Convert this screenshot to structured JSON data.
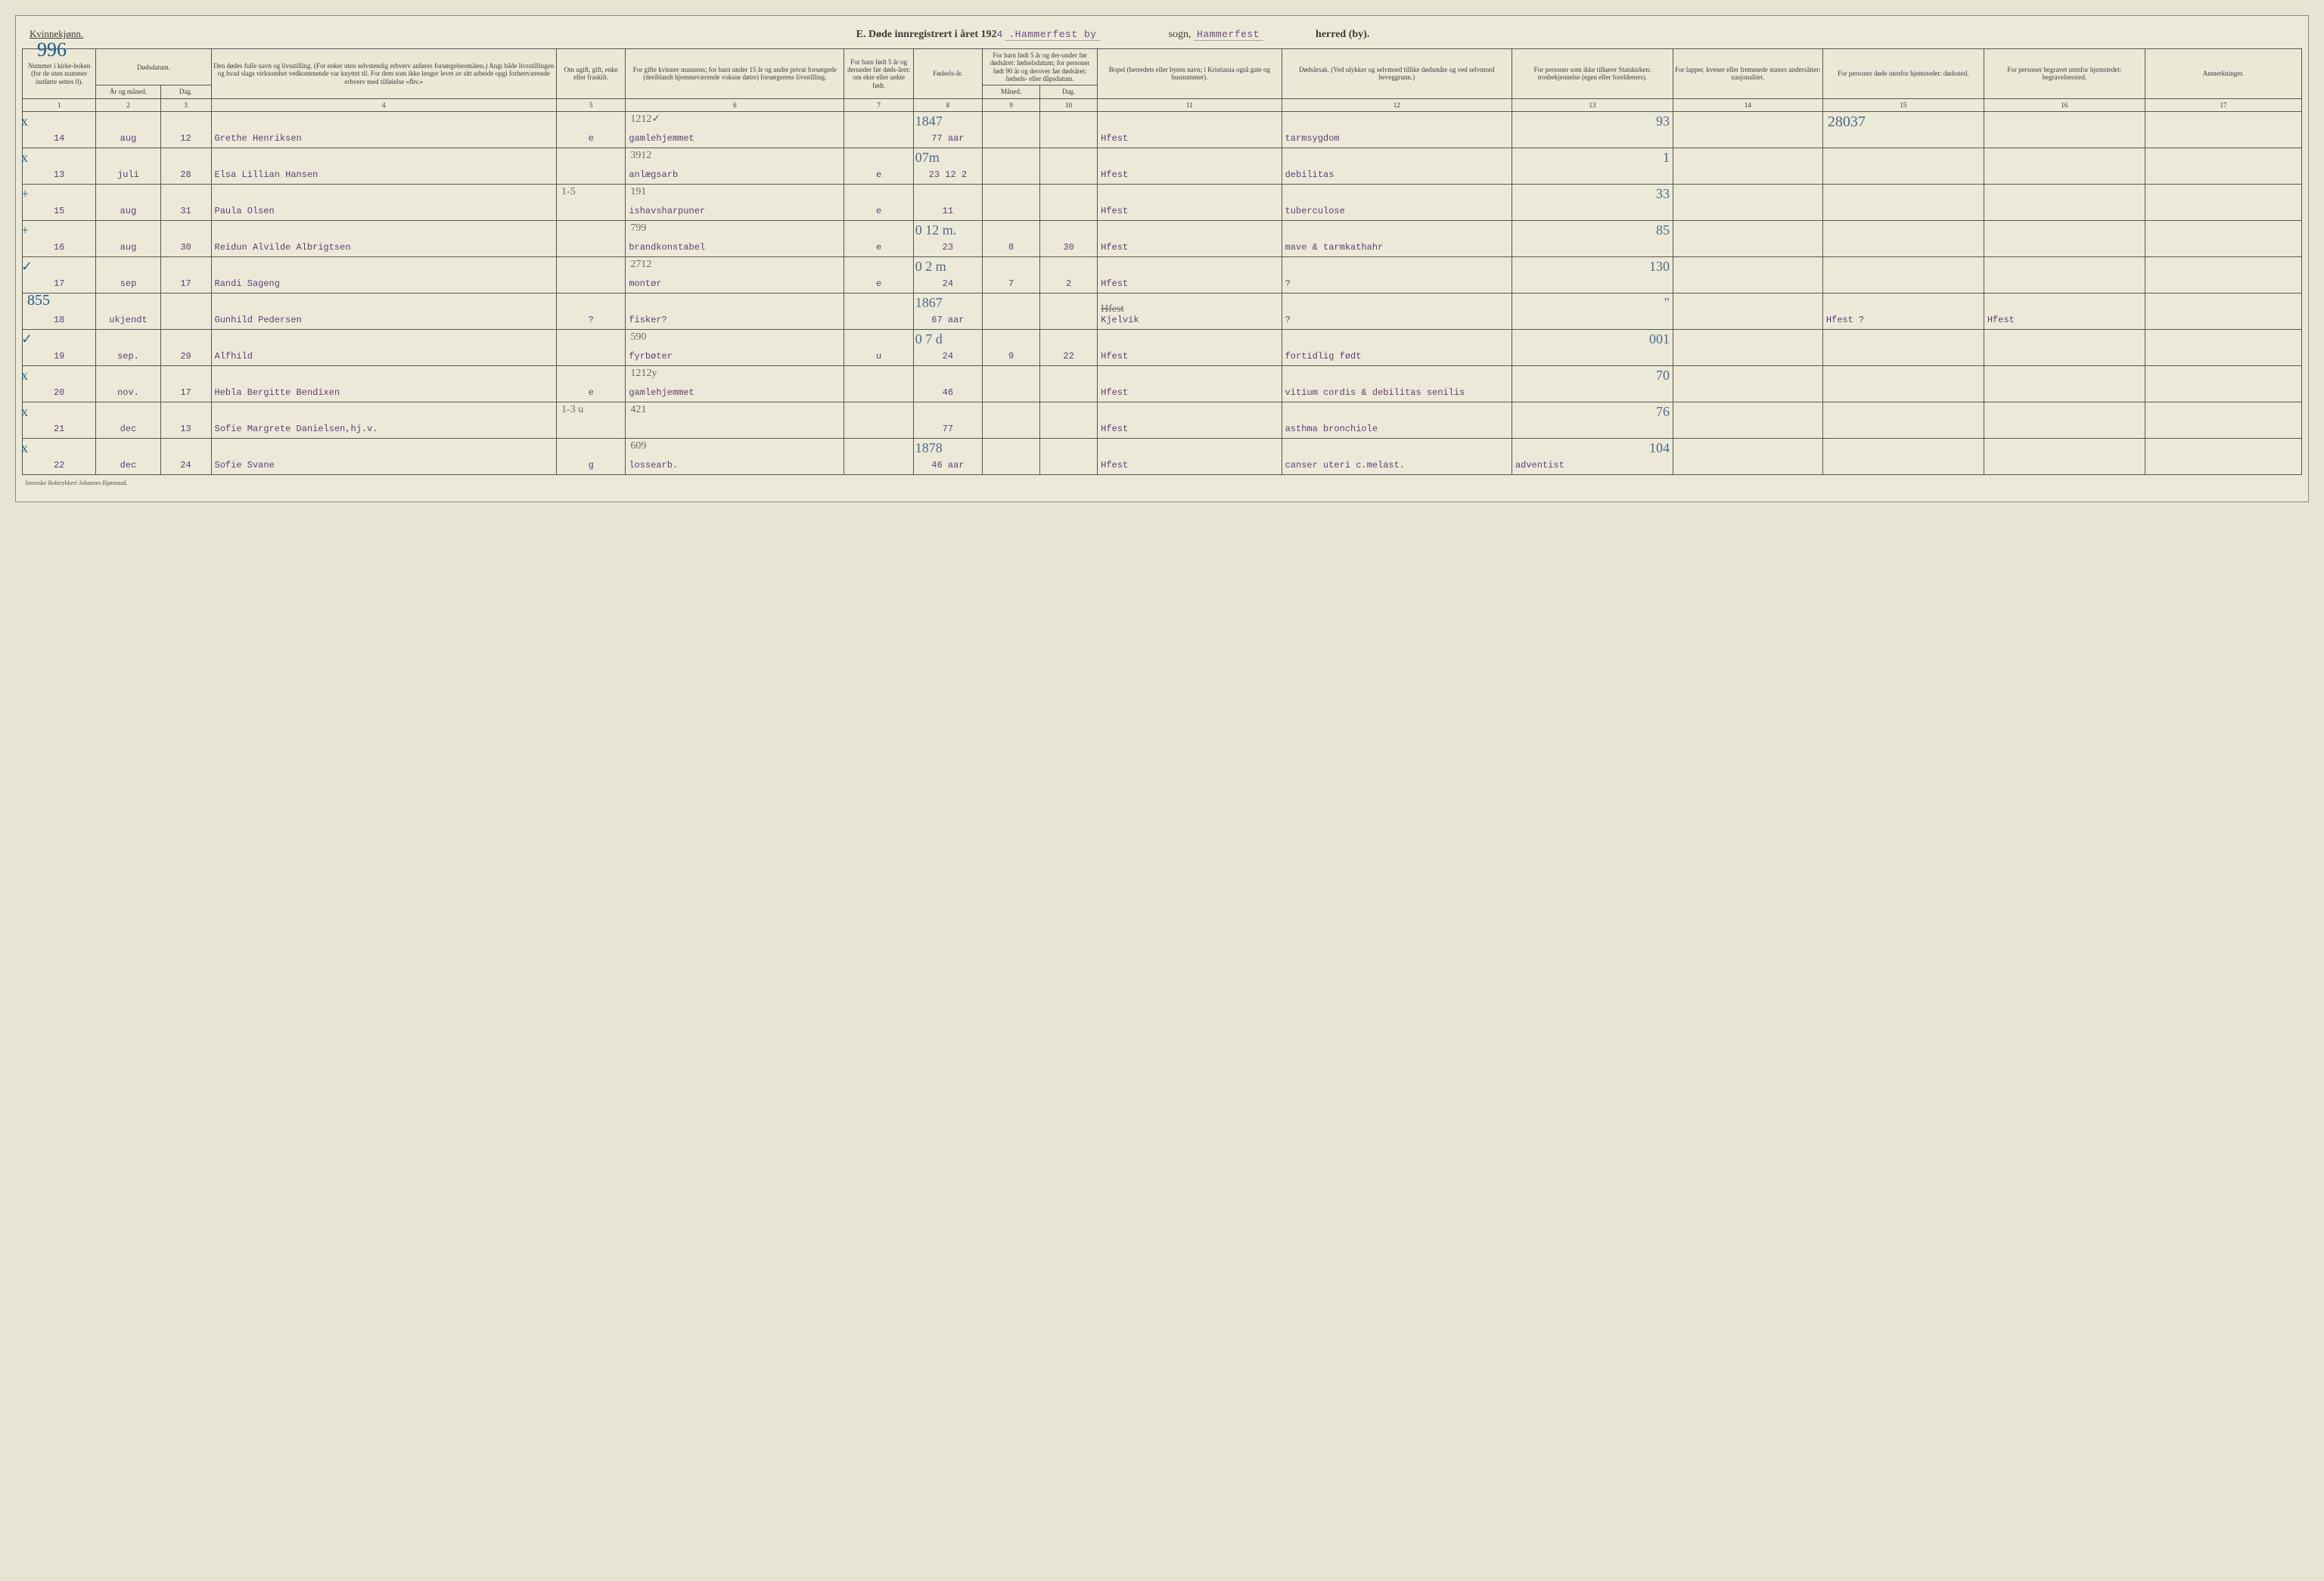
{
  "header": {
    "gender_label": "Kvinnekjønn.",
    "hand_number": "996",
    "title_prefix": "E.  Døde innregistrert i året 192",
    "year_suffix": "4",
    "place1": ".Hammerfest by",
    "sogn_label": "sogn,",
    "place2": "Hammerfest",
    "herred_label": "herred (by)."
  },
  "columns": {
    "c1": "Nummer i kirke-boken (for de uten nummer innførte settes 0).",
    "c2": "Dødsdatum.",
    "c2a": "År og måned.",
    "c2b": "Dag.",
    "c3": "Den dødes fulle navn og livsstilling. (For enker uten selvstendig erhverv anføres forsørgelsesmåten.) Angi både livsstillingen og hvad slags virksomhet vedkommende var knyttet til. For dem som ikke lenger levet av sitt arbeide opgi forhenværende erhverv med tilføielse «fhv.»",
    "c4": "Om ugift, gift, enke eller fraskilt.",
    "c5": "For gifte kvinner mannens; for barn under 15 år og andre privat forsørgede (deriblandt hjemmeværende voksne døtre) forsørgerens livsstilling.",
    "c6": "For barn født 5 år og derunder før døds-året: om ekte eller uekte født.",
    "c7": "Fødsels-år.",
    "c8": "For barn født 5 år og der-under før dødsåret: fødselsdatum; for personer født 90 år og derover før dødsåret: fødsels- eller dåpsdatum.",
    "c8a": "Måned.",
    "c8b": "Dag.",
    "c9": "Bopel (herredets eller byens navn; i Kristiania også gate og husnummer).",
    "c10": "Dødsårsak. (Ved ulykker og selvmord tillike dødsmåte og ved selvmord beveggrunn.)",
    "c11": "For personer som ikke tilhører Statskirken: trosbekjennelse (egen eller foreldrenes).",
    "c12": "For lapper, kvener eller fremmede staters undersåtter: nasjonalitet.",
    "c13": "For personer døde utenfor hjemstedet: dødssted.",
    "c14": "For personer begravet utenfor hjemstedet: begravelsessted.",
    "c15": "Anmerkninger."
  },
  "colnums": [
    "1",
    "2",
    "3",
    "4",
    "5",
    "6",
    "7",
    "8",
    "9",
    "10",
    "11",
    "12",
    "13",
    "14",
    "15",
    "16",
    "17"
  ],
  "rows": [
    {
      "tick": "x",
      "num": "14",
      "mon": "aug",
      "day": "12",
      "name": "Grethe Henriksen",
      "status": "e",
      "pencil6": "1212✓",
      "occ": "gamlehjemmet",
      "ekte": "",
      "pencil_age": "1847",
      "age": "77 aar",
      "m8": "",
      "d8": "",
      "bopel": "Hfest",
      "cause": "tarmsygdom",
      "c11": "",
      "hand11": "93",
      "c12": "",
      "c13": "",
      "hand13": "28037",
      "c14": "",
      "c15": ""
    },
    {
      "tick": "x",
      "num": "13",
      "mon": "juli",
      "day": "28",
      "name": "Elsa Lillian Hansen",
      "status": "",
      "pencil6": "3912",
      "occ": "anlægsarb",
      "ekte": "e",
      "pencil_age": "07m",
      "age": "23  12  2",
      "m8": "",
      "d8": "",
      "bopel": "Hfest",
      "cause": "debilitas",
      "c11": "",
      "hand11": "1",
      "c12": "",
      "c13": "",
      "hand13": "",
      "c14": "",
      "c15": ""
    },
    {
      "tick": "+",
      "num": "15",
      "mon": "aug",
      "day": "31",
      "name": "Paula Olsen",
      "status": "",
      "pencil6": "191",
      "pencil5": "1-5",
      "occ": "ishavsharpuner",
      "ekte": "e",
      "pencil_age": "",
      "age": "11",
      "m8": "",
      "d8": "",
      "bopel": "Hfest",
      "cause": "tuberculose",
      "c11": "",
      "hand11": "33",
      "c12": "",
      "c13": "",
      "hand13": "",
      "c14": "",
      "c15": ""
    },
    {
      "tick": "+",
      "num": "16",
      "mon": "aug",
      "day": "30",
      "name": "Reidun Alvilde Albrigtsen",
      "status": "",
      "pencil6": "799",
      "occ": "brandkonstabel",
      "ekte": "e",
      "pencil_age": "0 12 m.",
      "age": "23",
      "m8": "8",
      "d8": "30",
      "bopel": "Hfest",
      "cause": "mave & tarmkathahr",
      "c11": "",
      "hand11": "85",
      "c12": "",
      "c13": "",
      "hand13": "",
      "c14": "",
      "c15": ""
    },
    {
      "tick": "✓",
      "num": "17",
      "mon": "sep",
      "day": "17",
      "name": "Randi Sageng",
      "status": "",
      "pencil6": "2712",
      "occ": "montør",
      "ekte": "e",
      "pencil_age": "0 2 m",
      "age": "24",
      "m8": "7",
      "d8": "2",
      "bopel": "Hfest",
      "cause": "?",
      "c11": "",
      "hand11": "130",
      "c12": "",
      "c13": "",
      "hand13": "",
      "c14": "",
      "c15": ""
    },
    {
      "tick": "",
      "hand_num": "855",
      "num": "18",
      "mon": "ukjendt",
      "day": "",
      "name": "Gunhild Pedersen",
      "status": "?",
      "pencil6": "",
      "occ": "fisker?",
      "ekte": "",
      "pencil_age": "1867",
      "age": "67 aar",
      "m8": "",
      "d8": "",
      "bopel": "Kjelvik",
      "bopel2": "Hfest",
      "cause": "?",
      "c11": "",
      "hand11": "\"",
      "c12": "",
      "c13": "Hfest  ?",
      "hand13": "",
      "c14": "Hfest",
      "c15": ""
    },
    {
      "tick": "✓",
      "num": "19",
      "mon": "sep.",
      "day": "29",
      "name": "Alfhild",
      "status": "",
      "pencil6": "590",
      "occ": "fyrbøter",
      "ekte": "u",
      "pencil_age": "0 7 d",
      "age": "24",
      "m8": "9",
      "d8": "22",
      "bopel": "Hfest",
      "cause": "fortidlig født",
      "c11": "",
      "hand11": "001",
      "c12": "",
      "c13": "",
      "hand13": "",
      "c14": "",
      "c15": ""
    },
    {
      "tick": "x",
      "num": "20",
      "mon": "nov.",
      "day": "17",
      "name": "Hebla Bergitte Bendixen",
      "status": "e",
      "pencil6": "1212y",
      "occ": "gamlehjemmet",
      "ekte": "",
      "pencil_age": "",
      "age": "46",
      "m8": "",
      "d8": "",
      "bopel": "Hfest",
      "cause": "vitium cordis & debilitas senilis",
      "c11": "",
      "hand11": "70",
      "c12": "",
      "c13": "",
      "hand13": "",
      "c14": "",
      "c15": ""
    },
    {
      "tick": "x",
      "num": "21",
      "mon": "dec",
      "day": "13",
      "name": "Sofie Margrete Danielsen,hj.v.",
      "status": "",
      "pencil6": "421",
      "pencil5": "1-3 u",
      "occ": "",
      "ekte": "",
      "pencil_age": "",
      "age": "77",
      "m8": "",
      "d8": "",
      "bopel": "Hfest",
      "cause": "asthma bronchiole",
      "c11": "",
      "hand11": "76",
      "c12": "",
      "c13": "",
      "hand13": "",
      "c14": "",
      "c15": ""
    },
    {
      "tick": "x",
      "num": "22",
      "mon": "dec",
      "day": "24",
      "name": "Sofie Svane",
      "status": "g",
      "pencil6": "609",
      "occ": "lossearb.",
      "ekte": "",
      "pencil_age": "1878",
      "age": "46 aar",
      "m8": "",
      "d8": "",
      "bopel": "Hfest",
      "cause": "canser uteri c.melast.",
      "c11": "adventist",
      "hand11": "104",
      "c12": "",
      "c13": "",
      "hand13": "",
      "c14": "",
      "c15": ""
    }
  ],
  "footer": "Steenske Boktrykkeri Johannes Bjørnstad."
}
